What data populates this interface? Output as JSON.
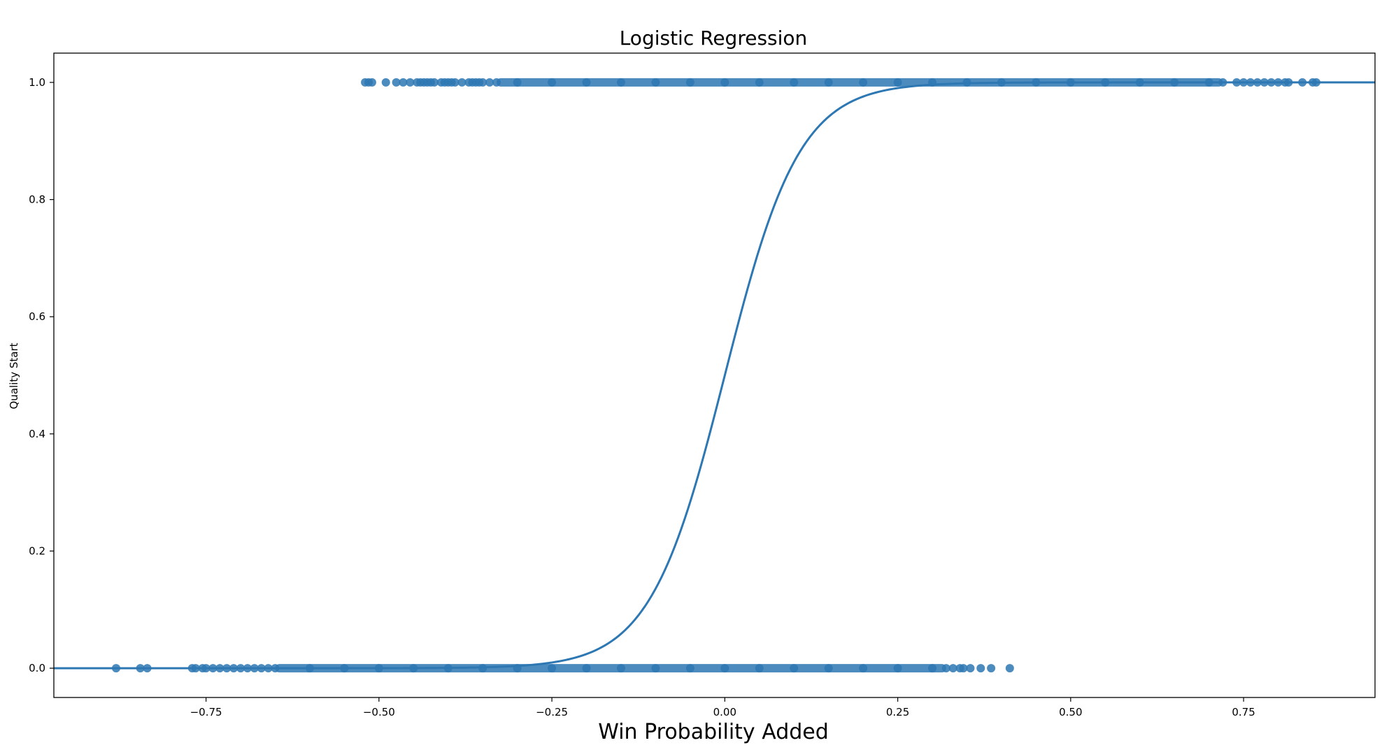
{
  "chart_data": {
    "type": "scatter",
    "title": "Logistic Regression",
    "xlabel": "Win Probability Added",
    "ylabel": "Quality Start",
    "xlim": [
      -0.97,
      0.94
    ],
    "ylim": [
      -0.05,
      1.05
    ],
    "xticks": [
      -0.75,
      -0.5,
      -0.25,
      0.0,
      0.25,
      0.5,
      0.75
    ],
    "xtick_labels": [
      "−0.75",
      "−0.50",
      "−0.25",
      "0.00",
      "0.25",
      "0.50",
      "0.75"
    ],
    "yticks": [
      0.0,
      0.2,
      0.4,
      0.6,
      0.8,
      1.0
    ],
    "ytick_labels": [
      "0.0",
      "0.2",
      "0.4",
      "0.6",
      "0.8",
      "1.0"
    ],
    "grid": false,
    "legend": "none",
    "color": "#2d77b3",
    "series": [
      {
        "kind": "points",
        "y": 1,
        "x": [
          -0.52,
          -0.515,
          -0.51,
          -0.49,
          -0.475,
          -0.465,
          -0.455,
          -0.445,
          -0.44,
          -0.435,
          -0.43,
          -0.425,
          -0.42,
          -0.41,
          -0.405,
          -0.4,
          -0.395,
          -0.39,
          -0.38,
          -0.37,
          -0.365,
          -0.36,
          -0.355,
          -0.35,
          -0.34,
          -0.33,
          -0.3,
          -0.25,
          -0.2,
          -0.15,
          -0.1,
          -0.05,
          0.0,
          0.05,
          0.1,
          0.15,
          0.2,
          0.25,
          0.3,
          0.35,
          0.4,
          0.45,
          0.5,
          0.55,
          0.6,
          0.65,
          0.7,
          0.72,
          0.74,
          0.75,
          0.76,
          0.77,
          0.78,
          0.79,
          0.8,
          0.81,
          0.815,
          0.835,
          0.85,
          0.855
        ]
      },
      {
        "kind": "points",
        "y": 0,
        "x": [
          -0.88,
          -0.845,
          -0.835,
          -0.77,
          -0.765,
          -0.755,
          -0.75,
          -0.74,
          -0.73,
          -0.72,
          -0.71,
          -0.7,
          -0.69,
          -0.68,
          -0.67,
          -0.66,
          -0.65,
          -0.6,
          -0.55,
          -0.5,
          -0.45,
          -0.4,
          -0.35,
          -0.3,
          -0.25,
          -0.2,
          -0.15,
          -0.1,
          -0.05,
          0.0,
          0.05,
          0.1,
          0.15,
          0.2,
          0.25,
          0.3,
          0.32,
          0.33,
          0.34,
          0.345,
          0.355,
          0.37,
          0.385,
          0.412
        ]
      },
      {
        "kind": "logistic-fit",
        "intercept": 0.0,
        "slope": 18.5,
        "x_range": [
          -0.97,
          0.94
        ]
      }
    ]
  }
}
